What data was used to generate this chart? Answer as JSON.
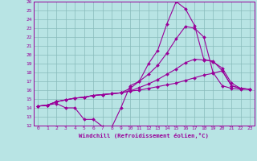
{
  "xlabel": "Windchill (Refroidissement éolien,°C)",
  "xlim": [
    -0.5,
    23.5
  ],
  "ylim": [
    12,
    26
  ],
  "xticks": [
    0,
    1,
    2,
    3,
    4,
    5,
    6,
    7,
    8,
    9,
    10,
    11,
    12,
    13,
    14,
    15,
    16,
    17,
    18,
    19,
    20,
    21,
    22,
    23
  ],
  "yticks": [
    12,
    13,
    14,
    15,
    16,
    17,
    18,
    19,
    20,
    21,
    22,
    23,
    24,
    25,
    26
  ],
  "bg_color": "#b8e4e4",
  "grid_color": "#88bbbb",
  "line_color": "#990099",
  "markersize": 2.0,
  "linewidth": 0.8,
  "curves": [
    [
      14.2,
      14.3,
      14.5,
      14.0,
      14.0,
      12.7,
      12.7,
      11.9,
      11.8,
      14.0,
      16.5,
      17.0,
      19.0,
      20.5,
      23.5,
      26.0,
      25.2,
      23.3,
      19.5,
      19.2,
      18.5,
      16.8,
      16.2,
      16.1
    ],
    [
      14.2,
      14.3,
      14.7,
      14.9,
      15.1,
      15.2,
      15.4,
      15.5,
      15.6,
      15.7,
      15.9,
      16.0,
      16.2,
      16.4,
      16.6,
      16.8,
      17.1,
      17.4,
      17.7,
      17.9,
      18.2,
      16.5,
      16.2,
      16.1
    ],
    [
      14.2,
      14.3,
      14.7,
      14.9,
      15.1,
      15.2,
      15.4,
      15.5,
      15.6,
      15.7,
      15.9,
      16.3,
      16.7,
      17.2,
      17.8,
      18.4,
      19.1,
      19.5,
      19.4,
      19.3,
      18.2,
      16.5,
      16.2,
      16.1
    ],
    [
      14.2,
      14.3,
      14.7,
      14.9,
      15.1,
      15.2,
      15.4,
      15.5,
      15.6,
      15.7,
      16.2,
      17.0,
      17.8,
      18.8,
      20.2,
      21.8,
      23.2,
      23.0,
      22.0,
      18.0,
      16.5,
      16.2,
      16.1,
      16.1
    ]
  ]
}
